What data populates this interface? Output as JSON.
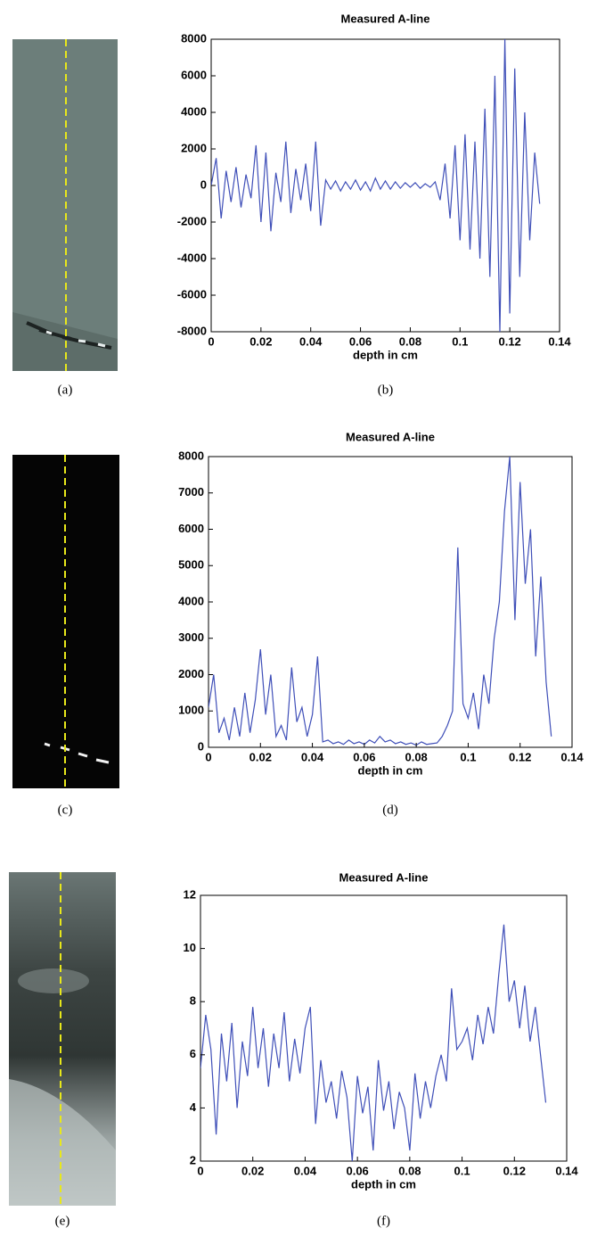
{
  "images": [
    {
      "caption": "(a)"
    },
    {
      "caption": "(c)"
    },
    {
      "caption": "(e)"
    }
  ],
  "chart_data": [
    {
      "type": "line",
      "title": "Measured A-line",
      "xlabel": "depth in cm",
      "caption": "(b)",
      "x": [
        0,
        0.002,
        0.004,
        0.006,
        0.008,
        0.01,
        0.012,
        0.014,
        0.016,
        0.018,
        0.02,
        0.022,
        0.024,
        0.026,
        0.028,
        0.03,
        0.032,
        0.034,
        0.036,
        0.038,
        0.04,
        0.042,
        0.044,
        0.046,
        0.048,
        0.05,
        0.052,
        0.054,
        0.056,
        0.058,
        0.06,
        0.062,
        0.064,
        0.066,
        0.068,
        0.07,
        0.072,
        0.074,
        0.076,
        0.078,
        0.08,
        0.082,
        0.084,
        0.086,
        0.088,
        0.09,
        0.092,
        0.094,
        0.096,
        0.098,
        0.1,
        0.102,
        0.104,
        0.106,
        0.108,
        0.11,
        0.112,
        0.114,
        0.116,
        0.118,
        0.12,
        0.122,
        0.124,
        0.126,
        0.128,
        0.13,
        0.132
      ],
      "series": [
        {
          "color": "#3f4fb8",
          "values": [
            0,
            1500,
            -1800,
            800,
            -900,
            1000,
            -1200,
            600,
            -700,
            2200,
            -2000,
            1800,
            -2500,
            700,
            -900,
            2400,
            -1500,
            900,
            -800,
            1200,
            -1400,
            2400,
            -2200,
            300,
            -200,
            250,
            -300,
            200,
            -200,
            300,
            -250,
            200,
            -300,
            400,
            -200,
            250,
            -200,
            200,
            -150,
            150,
            -100,
            150,
            -150,
            100,
            -100,
            200,
            -800,
            1200,
            -1800,
            2200,
            -3000,
            2800,
            -3500,
            2400,
            -4000,
            4200,
            -5000,
            6000,
            -8000,
            8000,
            -7000,
            6400,
            -5000,
            4000,
            -3000,
            1800,
            -1000
          ]
        }
      ],
      "xlim": [
        0,
        0.14
      ],
      "xticks": [
        0,
        0.02,
        0.04,
        0.06,
        0.08,
        0.1,
        0.12,
        0.14
      ],
      "ylim": [
        -8000,
        8000
      ],
      "yticks": [
        -8000,
        -6000,
        -4000,
        -2000,
        0,
        2000,
        4000,
        6000,
        8000
      ],
      "grid": false
    },
    {
      "type": "line",
      "title": "Measured A-line",
      "xlabel": "depth in cm",
      "caption": "(d)",
      "x": [
        0,
        0.002,
        0.004,
        0.006,
        0.008,
        0.01,
        0.012,
        0.014,
        0.016,
        0.018,
        0.02,
        0.022,
        0.024,
        0.026,
        0.028,
        0.03,
        0.032,
        0.034,
        0.036,
        0.038,
        0.04,
        0.042,
        0.044,
        0.046,
        0.048,
        0.05,
        0.052,
        0.054,
        0.056,
        0.058,
        0.06,
        0.062,
        0.064,
        0.066,
        0.068,
        0.07,
        0.072,
        0.074,
        0.076,
        0.078,
        0.08,
        0.082,
        0.084,
        0.086,
        0.088,
        0.09,
        0.092,
        0.094,
        0.096,
        0.098,
        0.1,
        0.102,
        0.104,
        0.106,
        0.108,
        0.11,
        0.112,
        0.114,
        0.116,
        0.118,
        0.12,
        0.122,
        0.124,
        0.126,
        0.128,
        0.13,
        0.132
      ],
      "series": [
        {
          "color": "#3f4fb8",
          "values": [
            1100,
            2000,
            400,
            800,
            200,
            1100,
            300,
            1500,
            400,
            1300,
            2700,
            900,
            2000,
            300,
            600,
            200,
            2200,
            700,
            1100,
            300,
            900,
            2500,
            150,
            200,
            100,
            150,
            80,
            200,
            100,
            150,
            80,
            200,
            120,
            300,
            150,
            200,
            100,
            150,
            80,
            120,
            60,
            150,
            80,
            100,
            120,
            300,
            600,
            1000,
            5500,
            1200,
            800,
            1500,
            500,
            2000,
            1200,
            3000,
            4000,
            6500,
            8000,
            3500,
            7300,
            4500,
            6000,
            2500,
            4700,
            1800,
            300
          ]
        }
      ],
      "xlim": [
        0,
        0.14
      ],
      "xticks": [
        0,
        0.02,
        0.04,
        0.06,
        0.08,
        0.1,
        0.12,
        0.14
      ],
      "ylim": [
        0,
        8000
      ],
      "yticks": [
        0,
        1000,
        2000,
        3000,
        4000,
        5000,
        6000,
        7000,
        8000
      ],
      "grid": false
    },
    {
      "type": "line",
      "title": "Measured A-line",
      "xlabel": "depth in cm",
      "caption": "(f)",
      "x": [
        0,
        0.002,
        0.004,
        0.006,
        0.008,
        0.01,
        0.012,
        0.014,
        0.016,
        0.018,
        0.02,
        0.022,
        0.024,
        0.026,
        0.028,
        0.03,
        0.032,
        0.034,
        0.036,
        0.038,
        0.04,
        0.042,
        0.044,
        0.046,
        0.048,
        0.05,
        0.052,
        0.054,
        0.056,
        0.058,
        0.06,
        0.062,
        0.064,
        0.066,
        0.068,
        0.07,
        0.072,
        0.074,
        0.076,
        0.078,
        0.08,
        0.082,
        0.084,
        0.086,
        0.088,
        0.09,
        0.092,
        0.094,
        0.096,
        0.098,
        0.1,
        0.102,
        0.104,
        0.106,
        0.108,
        0.11,
        0.112,
        0.114,
        0.116,
        0.118,
        0.12,
        0.122,
        0.124,
        0.126,
        0.128,
        0.13,
        0.132
      ],
      "series": [
        {
          "color": "#3f4fb8",
          "values": [
            5.5,
            7.5,
            6.2,
            3.0,
            6.8,
            5.0,
            7.2,
            4.0,
            6.5,
            5.2,
            7.8,
            5.5,
            7.0,
            4.8,
            6.8,
            5.5,
            7.6,
            5.0,
            6.6,
            5.3,
            7.0,
            7.8,
            3.4,
            5.8,
            4.2,
            5.0,
            3.6,
            5.4,
            4.4,
            2.0,
            5.2,
            3.8,
            4.8,
            2.4,
            5.8,
            3.9,
            5.0,
            3.2,
            4.6,
            4.0,
            2.4,
            5.3,
            3.6,
            5.0,
            4.0,
            5.2,
            6.0,
            5.0,
            8.5,
            6.2,
            6.5,
            7.0,
            5.8,
            7.5,
            6.4,
            7.8,
            6.8,
            9.0,
            10.9,
            8.0,
            8.8,
            7.0,
            8.6,
            6.5,
            7.8,
            6.0,
            4.2
          ]
        }
      ],
      "xlim": [
        0,
        0.14
      ],
      "xticks": [
        0,
        0.02,
        0.04,
        0.06,
        0.08,
        0.1,
        0.12,
        0.14
      ],
      "ylim": [
        2,
        12
      ],
      "yticks": [
        2,
        4,
        6,
        8,
        10,
        12
      ],
      "grid": false
    }
  ]
}
